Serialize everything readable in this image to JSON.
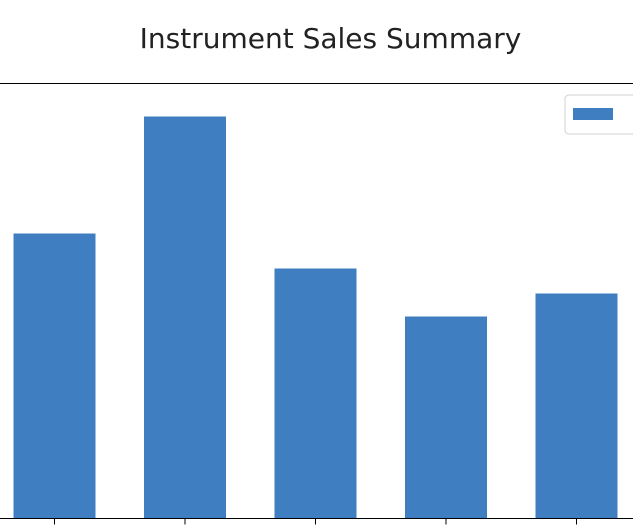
{
  "chart_data": {
    "type": "bar",
    "title": "Instrument Sales Summary",
    "categories": [
      "",
      "",
      "",
      "",
      ""
    ],
    "values": [
      285,
      402,
      250,
      202,
      225
    ],
    "ylim": [
      0,
      435
    ],
    "series": [
      {
        "name": "",
        "values": [
          285,
          402,
          250,
          202,
          225
        ]
      }
    ],
    "xlabel": "",
    "ylabel": "",
    "grid": false,
    "legend": "top-right",
    "bar_color": "#3f7ec0"
  }
}
